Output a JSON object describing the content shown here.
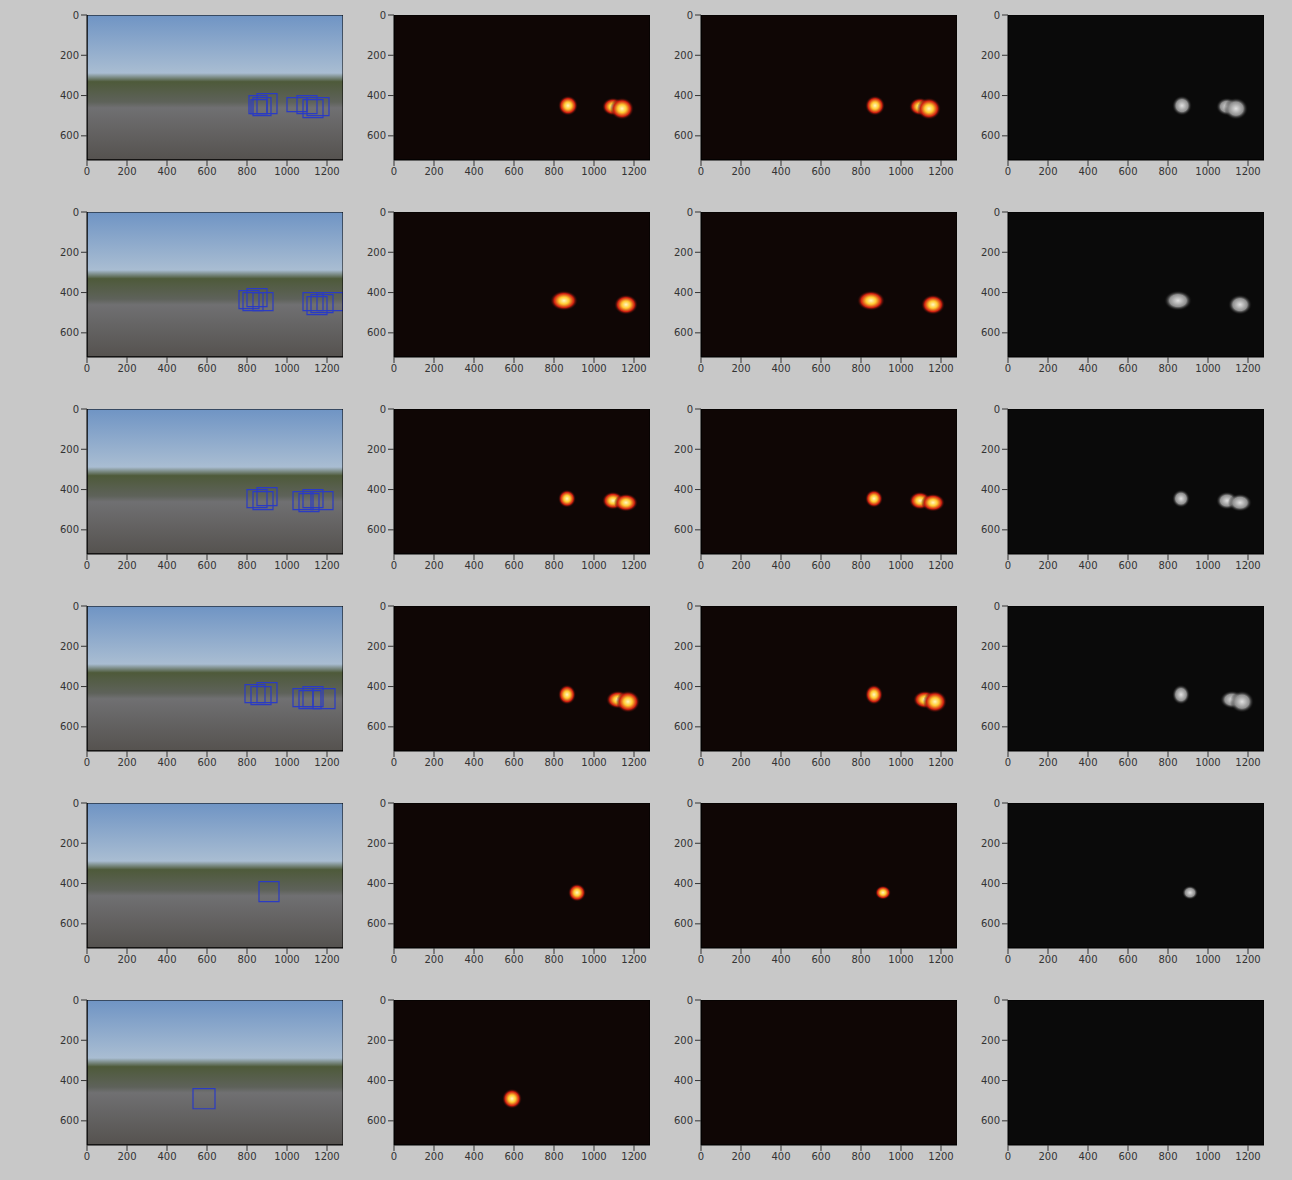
{
  "chart_data": [
    {
      "type": "photo",
      "color": "#2a3bc4",
      "xlim": [
        0,
        1280
      ],
      "ylim": [
        720,
        0
      ],
      "xticks": [
        0,
        200,
        400,
        600,
        800,
        1000,
        1200
      ],
      "yticks": [
        0,
        200,
        400,
        600
      ],
      "boxes": [
        [
          810,
          400,
          900,
          490
        ],
        [
          830,
          410,
          920,
          500
        ],
        [
          850,
          390,
          950,
          490
        ],
        [
          820,
          420,
          900,
          490
        ],
        [
          1000,
          410,
          1100,
          480
        ],
        [
          1050,
          400,
          1150,
          490
        ],
        [
          1100,
          410,
          1210,
          500
        ],
        [
          1080,
          420,
          1180,
          510
        ]
      ]
    },
    {
      "type": "heatmap",
      "xlim": [
        0,
        1280
      ],
      "ylim": [
        720,
        0
      ],
      "xticks": [
        0,
        200,
        400,
        600,
        800,
        1000,
        1200
      ],
      "yticks": [
        0,
        200,
        400,
        600
      ],
      "boxes": [
        [
          820,
          400,
          920,
          500
        ],
        [
          1040,
          410,
          1150,
          500
        ],
        [
          1080,
          410,
          1200,
          520
        ]
      ]
    },
    {
      "type": "heatmap",
      "xlim": [
        0,
        1280
      ],
      "ylim": [
        720,
        0
      ],
      "xticks": [
        0,
        200,
        400,
        600,
        800,
        1000,
        1200
      ],
      "yticks": [
        0,
        200,
        400,
        600
      ],
      "boxes": [
        [
          820,
          400,
          920,
          500
        ],
        [
          1040,
          410,
          1150,
          500
        ],
        [
          1080,
          410,
          1200,
          520
        ]
      ]
    },
    {
      "type": "gray",
      "xlim": [
        0,
        1280
      ],
      "ylim": [
        720,
        0
      ],
      "xticks": [
        0,
        200,
        400,
        600,
        800,
        1000,
        1200
      ],
      "yticks": [
        0,
        200,
        400,
        600
      ],
      "boxes": [
        [
          820,
          400,
          920,
          500
        ],
        [
          1040,
          410,
          1150,
          500
        ],
        [
          1080,
          410,
          1200,
          520
        ]
      ]
    },
    {
      "type": "photo",
      "color": "#2a3bc4",
      "xlim": [
        0,
        1280
      ],
      "ylim": [
        720,
        0
      ],
      "xticks": [
        0,
        200,
        400,
        600,
        800,
        1000,
        1200
      ],
      "yticks": [
        0,
        200,
        400,
        600
      ],
      "boxes": [
        [
          760,
          390,
          860,
          480
        ],
        [
          800,
          380,
          900,
          470
        ],
        [
          830,
          400,
          930,
          490
        ],
        [
          780,
          400,
          880,
          490
        ],
        [
          1080,
          400,
          1180,
          490
        ],
        [
          1120,
          410,
          1230,
          500
        ],
        [
          1150,
          400,
          1280,
          490
        ],
        [
          1100,
          420,
          1200,
          510
        ]
      ]
    },
    {
      "type": "heatmap",
      "xlim": [
        0,
        1280
      ],
      "ylim": [
        720,
        0
      ],
      "xticks": [
        0,
        200,
        400,
        600,
        800,
        1000,
        1200
      ],
      "yticks": [
        0,
        200,
        400,
        600
      ],
      "boxes": [
        [
          780,
          390,
          920,
          490
        ],
        [
          1100,
          410,
          1220,
          510
        ]
      ]
    },
    {
      "type": "heatmap",
      "xlim": [
        0,
        1280
      ],
      "ylim": [
        720,
        0
      ],
      "xticks": [
        0,
        200,
        400,
        600,
        800,
        1000,
        1200
      ],
      "yticks": [
        0,
        200,
        400,
        600
      ],
      "boxes": [
        [
          780,
          390,
          920,
          490
        ],
        [
          1100,
          410,
          1220,
          510
        ]
      ]
    },
    {
      "type": "gray",
      "xlim": [
        0,
        1280
      ],
      "ylim": [
        720,
        0
      ],
      "xticks": [
        0,
        200,
        400,
        600,
        800,
        1000,
        1200
      ],
      "yticks": [
        0,
        200,
        400,
        600
      ],
      "boxes": [
        [
          780,
          390,
          920,
          490
        ],
        [
          1100,
          410,
          1220,
          510
        ]
      ]
    },
    {
      "type": "photo",
      "color": "#2a3bc4",
      "xlim": [
        0,
        1280
      ],
      "ylim": [
        720,
        0
      ],
      "xticks": [
        0,
        200,
        400,
        600,
        800,
        1000,
        1200
      ],
      "yticks": [
        0,
        200,
        400,
        600
      ],
      "boxes": [
        [
          800,
          400,
          900,
          490
        ],
        [
          830,
          410,
          930,
          500
        ],
        [
          850,
          390,
          950,
          480
        ],
        [
          1030,
          410,
          1130,
          500
        ],
        [
          1080,
          400,
          1180,
          490
        ],
        [
          1120,
          410,
          1230,
          500
        ],
        [
          1060,
          420,
          1160,
          510
        ]
      ]
    },
    {
      "type": "heatmap",
      "xlim": [
        0,
        1280
      ],
      "ylim": [
        720,
        0
      ],
      "xticks": [
        0,
        200,
        400,
        600,
        800,
        1000,
        1200
      ],
      "yticks": [
        0,
        200,
        400,
        600
      ],
      "boxes": [
        [
          820,
          400,
          910,
          490
        ],
        [
          1040,
          410,
          1150,
          500
        ],
        [
          1100,
          420,
          1220,
          510
        ]
      ]
    },
    {
      "type": "heatmap",
      "xlim": [
        0,
        1280
      ],
      "ylim": [
        720,
        0
      ],
      "xticks": [
        0,
        200,
        400,
        600,
        800,
        1000,
        1200
      ],
      "yticks": [
        0,
        200,
        400,
        600
      ],
      "boxes": [
        [
          820,
          400,
          910,
          490
        ],
        [
          1040,
          410,
          1150,
          500
        ],
        [
          1100,
          420,
          1220,
          510
        ]
      ]
    },
    {
      "type": "gray",
      "xlim": [
        0,
        1280
      ],
      "ylim": [
        720,
        0
      ],
      "xticks": [
        0,
        200,
        400,
        600,
        800,
        1000,
        1200
      ],
      "yticks": [
        0,
        200,
        400,
        600
      ],
      "boxes": [
        [
          820,
          400,
          910,
          490
        ],
        [
          1040,
          410,
          1150,
          500
        ],
        [
          1100,
          420,
          1220,
          510
        ]
      ]
    },
    {
      "type": "photo",
      "color": "#2a3bc4",
      "xlim": [
        0,
        1280
      ],
      "ylim": [
        720,
        0
      ],
      "xticks": [
        0,
        200,
        400,
        600,
        800,
        1000,
        1200
      ],
      "yticks": [
        0,
        200,
        400,
        600
      ],
      "boxes": [
        [
          790,
          390,
          890,
          480
        ],
        [
          820,
          400,
          920,
          490
        ],
        [
          850,
          380,
          950,
          480
        ],
        [
          1030,
          410,
          1130,
          500
        ],
        [
          1080,
          400,
          1180,
          500
        ],
        [
          1130,
          410,
          1240,
          510
        ],
        [
          1060,
          420,
          1170,
          510
        ]
      ]
    },
    {
      "type": "heatmap",
      "xlim": [
        0,
        1280
      ],
      "ylim": [
        720,
        0
      ],
      "xticks": [
        0,
        200,
        400,
        600,
        800,
        1000,
        1200
      ],
      "yticks": [
        0,
        200,
        400,
        600
      ],
      "boxes": [
        [
          820,
          390,
          910,
          490
        ],
        [
          1060,
          420,
          1180,
          510
        ],
        [
          1110,
          420,
          1230,
          530
        ]
      ]
    },
    {
      "type": "heatmap",
      "xlim": [
        0,
        1280
      ],
      "ylim": [
        720,
        0
      ],
      "xticks": [
        0,
        200,
        400,
        600,
        800,
        1000,
        1200
      ],
      "yticks": [
        0,
        200,
        400,
        600
      ],
      "boxes": [
        [
          820,
          390,
          910,
          490
        ],
        [
          1060,
          420,
          1180,
          510
        ],
        [
          1110,
          420,
          1230,
          530
        ]
      ]
    },
    {
      "type": "gray",
      "xlim": [
        0,
        1280
      ],
      "ylim": [
        720,
        0
      ],
      "xticks": [
        0,
        200,
        400,
        600,
        800,
        1000,
        1200
      ],
      "yticks": [
        0,
        200,
        400,
        600
      ],
      "boxes": [
        [
          820,
          390,
          910,
          490
        ],
        [
          1060,
          420,
          1180,
          510
        ],
        [
          1110,
          420,
          1230,
          530
        ]
      ]
    },
    {
      "type": "photo",
      "color": "#2a3bc4",
      "xlim": [
        0,
        1280
      ],
      "ylim": [
        720,
        0
      ],
      "xticks": [
        0,
        200,
        400,
        600,
        800,
        1000,
        1200
      ],
      "yticks": [
        0,
        200,
        400,
        600
      ],
      "boxes": [
        [
          860,
          390,
          960,
          490
        ]
      ]
    },
    {
      "type": "heatmap",
      "xlim": [
        0,
        1280
      ],
      "ylim": [
        720,
        0
      ],
      "xticks": [
        0,
        200,
        400,
        600,
        800,
        1000,
        1200
      ],
      "yticks": [
        0,
        200,
        400,
        600
      ],
      "boxes": [
        [
          870,
          400,
          960,
          490
        ]
      ]
    },
    {
      "type": "heatmap",
      "xlim": [
        0,
        1280
      ],
      "ylim": [
        720,
        0
      ],
      "xticks": [
        0,
        200,
        400,
        600,
        800,
        1000,
        1200
      ],
      "yticks": [
        0,
        200,
        400,
        600
      ],
      "boxes": [
        [
          870,
          410,
          950,
          480
        ]
      ]
    },
    {
      "type": "gray",
      "xlim": [
        0,
        1280
      ],
      "ylim": [
        720,
        0
      ],
      "xticks": [
        0,
        200,
        400,
        600,
        800,
        1000,
        1200
      ],
      "yticks": [
        0,
        200,
        400,
        600
      ],
      "boxes": [
        [
          870,
          410,
          950,
          480
        ]
      ]
    },
    {
      "type": "photo",
      "color": "#2a3bc4",
      "xlim": [
        0,
        1280
      ],
      "ylim": [
        720,
        0
      ],
      "xticks": [
        0,
        200,
        400,
        600,
        800,
        1000,
        1200
      ],
      "yticks": [
        0,
        200,
        400,
        600
      ],
      "boxes": [
        [
          530,
          440,
          640,
          540
        ]
      ]
    },
    {
      "type": "heatmap",
      "xlim": [
        0,
        1280
      ],
      "ylim": [
        720,
        0
      ],
      "xticks": [
        0,
        200,
        400,
        600,
        800,
        1000,
        1200
      ],
      "yticks": [
        0,
        200,
        400,
        600
      ],
      "boxes": [
        [
          540,
          440,
          640,
          540
        ]
      ]
    },
    {
      "type": "heatmap",
      "xlim": [
        0,
        1280
      ],
      "ylim": [
        720,
        0
      ],
      "xticks": [
        0,
        200,
        400,
        600,
        800,
        1000,
        1200
      ],
      "yticks": [
        0,
        200,
        400,
        600
      ],
      "boxes": []
    },
    {
      "type": "gray",
      "xlim": [
        0,
        1280
      ],
      "ylim": [
        720,
        0
      ],
      "xticks": [
        0,
        200,
        400,
        600,
        800,
        1000,
        1200
      ],
      "yticks": [
        0,
        200,
        400,
        600
      ],
      "boxes": []
    }
  ]
}
